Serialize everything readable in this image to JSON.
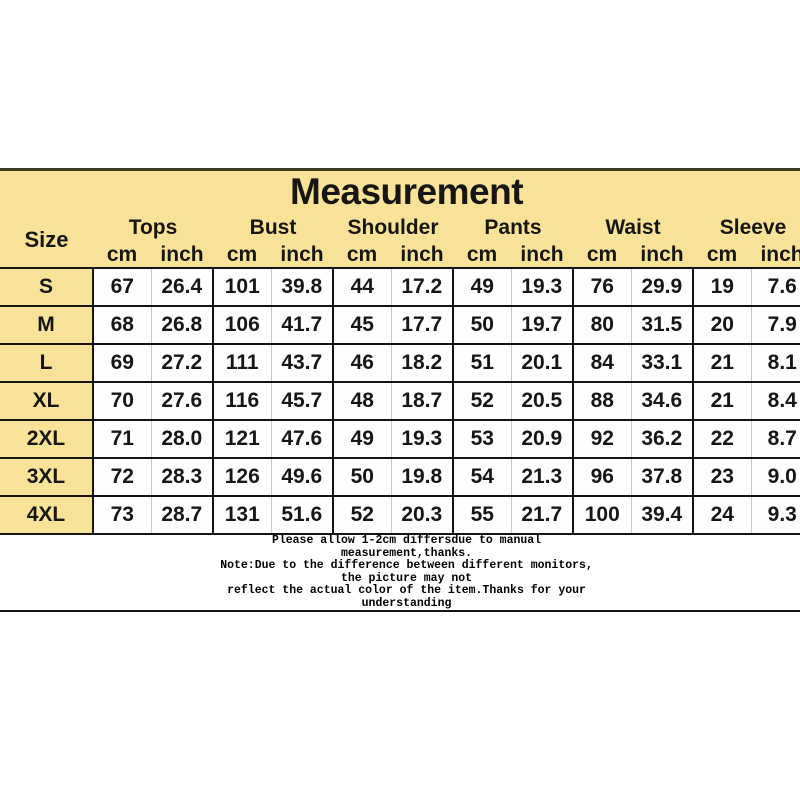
{
  "title": "Measurement",
  "table": {
    "size_header": "Size",
    "groups": [
      "Tops",
      "Bust",
      "Shoulder",
      "Pants",
      "Waist",
      "Sleeve"
    ],
    "sub_cm": "cm",
    "sub_inch": "inch",
    "rows": [
      {
        "size": "S",
        "values": [
          "67",
          "26.4",
          "101",
          "39.8",
          "44",
          "17.2",
          "49",
          "19.3",
          "76",
          "29.9",
          "19",
          "7.6"
        ]
      },
      {
        "size": "M",
        "values": [
          "68",
          "26.8",
          "106",
          "41.7",
          "45",
          "17.7",
          "50",
          "19.7",
          "80",
          "31.5",
          "20",
          "7.9"
        ]
      },
      {
        "size": "L",
        "values": [
          "69",
          "27.2",
          "111",
          "43.7",
          "46",
          "18.2",
          "51",
          "20.1",
          "84",
          "33.1",
          "21",
          "8.1"
        ]
      },
      {
        "size": "XL",
        "values": [
          "70",
          "27.6",
          "116",
          "45.7",
          "48",
          "18.7",
          "52",
          "20.5",
          "88",
          "34.6",
          "21",
          "8.4"
        ]
      },
      {
        "size": "2XL",
        "values": [
          "71",
          "28.0",
          "121",
          "47.6",
          "49",
          "19.3",
          "53",
          "20.9",
          "92",
          "36.2",
          "22",
          "8.7"
        ]
      },
      {
        "size": "3XL",
        "values": [
          "72",
          "28.3",
          "126",
          "49.6",
          "50",
          "19.8",
          "54",
          "21.3",
          "96",
          "37.8",
          "23",
          "9.0"
        ]
      },
      {
        "size": "4XL",
        "values": [
          "73",
          "28.7",
          "131",
          "51.6",
          "52",
          "20.3",
          "55",
          "21.7",
          "100",
          "39.4",
          "24",
          "9.3"
        ]
      }
    ]
  },
  "footer": {
    "lines": [
      "Please allow 1-2cm differsdue to manual",
      "measurement,thanks.",
      "Note:Due to the difference between different monitors,",
      "the picture may not",
      "reflect the actual color of the item.Thanks for your",
      "understanding"
    ]
  },
  "colors": {
    "header_bg": "#FAE398",
    "row_border": "#141414",
    "sub_divider": "#c9c9c9",
    "top_border": "#3c3c22",
    "cell_bg": "#fefefe"
  },
  "chart_data": {
    "type": "table",
    "title": "Measurement",
    "columns": [
      "Size",
      "Tops cm",
      "Tops inch",
      "Bust cm",
      "Bust inch",
      "Shoulder cm",
      "Shoulder inch",
      "Pants cm",
      "Pants inch",
      "Waist cm",
      "Waist inch",
      "Sleeve cm",
      "Sleeve inch"
    ],
    "rows": [
      [
        "S",
        67,
        26.4,
        101,
        39.8,
        44,
        17.2,
        49,
        19.3,
        76,
        29.9,
        19,
        7.6
      ],
      [
        "M",
        68,
        26.8,
        106,
        41.7,
        45,
        17.7,
        50,
        19.7,
        80,
        31.5,
        20,
        7.9
      ],
      [
        "L",
        69,
        27.2,
        111,
        43.7,
        46,
        18.2,
        51,
        20.1,
        84,
        33.1,
        21,
        8.1
      ],
      [
        "XL",
        70,
        27.6,
        116,
        45.7,
        48,
        18.7,
        52,
        20.5,
        88,
        34.6,
        21,
        8.4
      ],
      [
        "2XL",
        71,
        28.0,
        121,
        47.6,
        49,
        19.3,
        53,
        20.9,
        92,
        36.2,
        22,
        8.7
      ],
      [
        "3XL",
        72,
        28.3,
        126,
        49.6,
        50,
        19.8,
        54,
        21.3,
        96,
        37.8,
        23,
        9.0
      ],
      [
        "4XL",
        73,
        28.7,
        131,
        51.6,
        52,
        20.3,
        55,
        21.7,
        100,
        39.4,
        24,
        9.3
      ]
    ]
  }
}
